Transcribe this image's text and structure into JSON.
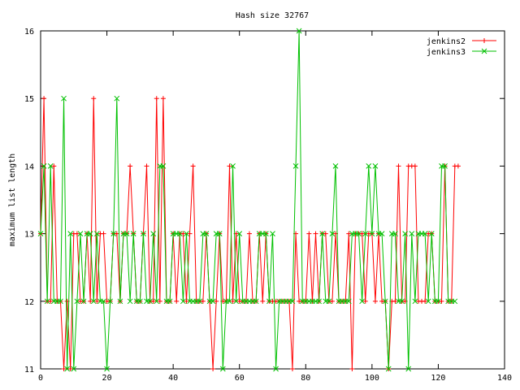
{
  "chart_data": {
    "type": "line",
    "title": "Hash size 32767",
    "xlabel": "",
    "ylabel": "maximum list length",
    "xlim": [
      0,
      140
    ],
    "ylim": [
      11,
      16
    ],
    "xticks": [
      0,
      20,
      40,
      60,
      80,
      100,
      120,
      140
    ],
    "yticks": [
      11,
      12,
      13,
      14,
      15,
      16
    ],
    "legend_position": "top-right",
    "grid": false,
    "series": [
      {
        "name": "jenkins2",
        "color": "#ff0000",
        "marker": "plus",
        "values": [
          13,
          15,
          12,
          12,
          14,
          12,
          12,
          11,
          12,
          11,
          13,
          13,
          12,
          12,
          13,
          12,
          15,
          12,
          13,
          13,
          12,
          12,
          13,
          13,
          12,
          13,
          13,
          14,
          13,
          12,
          12,
          13,
          14,
          12,
          12,
          15,
          12,
          15,
          12,
          12,
          13,
          12,
          13,
          13,
          12,
          13,
          14,
          12,
          12,
          12,
          13,
          12,
          11,
          12,
          13,
          12,
          12,
          14,
          12,
          13,
          12,
          12,
          12,
          13,
          12,
          12,
          13,
          12,
          13,
          12,
          12,
          12,
          12,
          12,
          12,
          12,
          11,
          13,
          12,
          12,
          12,
          13,
          12,
          13,
          12,
          13,
          13,
          12,
          12,
          13,
          12,
          12,
          12,
          13,
          11,
          13,
          13,
          13,
          12,
          13,
          13,
          12,
          13,
          12,
          12,
          11,
          12,
          12,
          14,
          12,
          12,
          14,
          14,
          14,
          12,
          12,
          12,
          13,
          13,
          12,
          12,
          12,
          14,
          12,
          12,
          14,
          14
        ]
      },
      {
        "name": "jenkins3",
        "color": "#00c000",
        "marker": "cross",
        "values": [
          13,
          14,
          12,
          14,
          12,
          12,
          12,
          15,
          11,
          13,
          11,
          12,
          13,
          12,
          13,
          13,
          12,
          13,
          12,
          12,
          11,
          12,
          13,
          15,
          12,
          13,
          13,
          12,
          13,
          12,
          12,
          13,
          12,
          12,
          13,
          12,
          14,
          14,
          12,
          12,
          13,
          13,
          13,
          12,
          13,
          12,
          12,
          12,
          12,
          13,
          13,
          12,
          12,
          13,
          13,
          11,
          12,
          12,
          14,
          12,
          13,
          12,
          12,
          12,
          12,
          12,
          13,
          13,
          13,
          12,
          13,
          11,
          12,
          12,
          12,
          12,
          12,
          14,
          16,
          12,
          12,
          12,
          12,
          12,
          12,
          13,
          12,
          12,
          13,
          14,
          12,
          12,
          12,
          12,
          13,
          13,
          13,
          12,
          13,
          14,
          13,
          14,
          13,
          13,
          12,
          11,
          13,
          13,
          12,
          12,
          13,
          11,
          13,
          12,
          13,
          13,
          13,
          12,
          13,
          12,
          12,
          14,
          14,
          12,
          12,
          12
        ]
      }
    ]
  }
}
